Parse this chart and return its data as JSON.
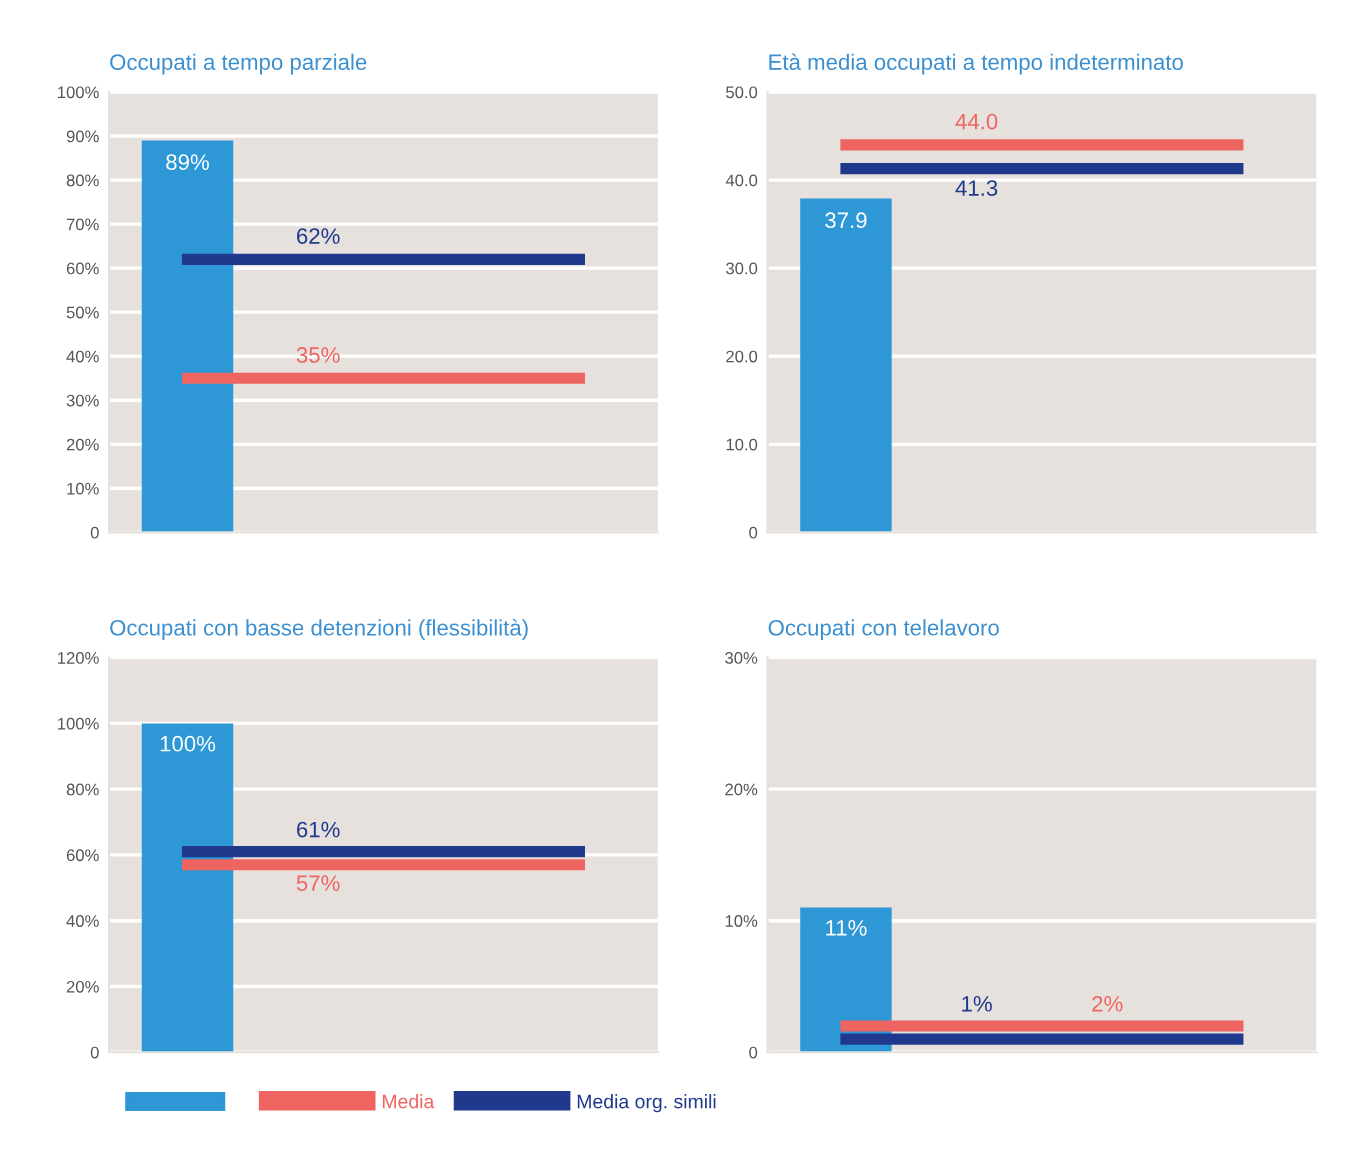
{
  "chart_data": [
    {
      "type": "bar",
      "title": "Occupati a tempo parziale",
      "categories": [
        null,
        null,
        null,
        null
      ],
      "ylim": [
        0,
        100
      ],
      "yticks": [
        0,
        {
          "value": 10,
          "label": "10%"
        },
        {
          "value": 20,
          "label": "20%"
        },
        {
          "value": 30,
          "label": "30%"
        },
        {
          "value": 40,
          "label": "40%"
        },
        {
          "value": 50,
          "label": "50%"
        },
        {
          "value": 60,
          "label": "60%"
        },
        {
          "value": 70,
          "label": "70%"
        },
        {
          "value": 80,
          "label": "80%"
        },
        {
          "value": 90,
          "label": "90%"
        },
        {
          "value": 100,
          "label": "100%"
        }
      ],
      "grid": "y",
      "series": [
        {
          "color": "#2e97d6",
          "values": [
            89,
            null,
            null,
            null
          ],
          "value_labels": [
            "89%",
            null,
            null,
            null
          ]
        },
        {
          "type": "line",
          "color": "#ee6460",
          "values": [
            35,
            35,
            35,
            35
          ],
          "value_labels": [
            null,
            "35%",
            null,
            null
          ]
        },
        {
          "type": "line",
          "color": "#1f3a8c",
          "values": [
            62,
            62,
            62,
            62
          ],
          "value_labels": [
            null,
            "62%",
            null,
            null
          ]
        }
      ]
    },
    {
      "type": "bar",
      "title": "Età media occupati a tempo indeterminato",
      "categories": [
        null,
        null,
        null,
        null
      ],
      "ylim": [
        0,
        50
      ],
      "yticks": [
        0,
        {
          "value": 10,
          "label": "10.0"
        },
        {
          "value": 20,
          "label": "20.0"
        },
        {
          "value": 30,
          "label": "30.0"
        },
        {
          "value": 40,
          "label": "40.0"
        },
        {
          "value": 50,
          "label": "50.0"
        }
      ],
      "grid": "y",
      "series": [
        {
          "color": "#2e97d6",
          "values": [
            37.9,
            null,
            null,
            null
          ],
          "value_labels": [
            "37.9",
            null,
            null,
            null
          ]
        },
        {
          "type": "line",
          "color": "#ee6460",
          "values": [
            44.0,
            44.0,
            44.0,
            44.0
          ],
          "value_labels": [
            null,
            "44.0",
            null,
            null
          ]
        },
        {
          "type": "line",
          "color": "#1f3a8c",
          "values": [
            41.3,
            41.3,
            41.3,
            41.3
          ],
          "value_labels": [
            null,
            "41.3",
            null,
            null
          ]
        }
      ]
    },
    {
      "type": "bar",
      "title": "Occupati con basse detenzioni (flessibilità)",
      "categories": [
        null,
        null,
        null,
        null
      ],
      "ylim": [
        0,
        120
      ],
      "yticks": [
        0,
        {
          "value": 20,
          "label": "20%"
        },
        {
          "value": 40,
          "label": "40%"
        },
        {
          "value": 60,
          "label": "60%"
        },
        {
          "value": 80,
          "label": "80%"
        },
        {
          "value": 100,
          "label": "100%"
        },
        {
          "value": 120,
          "label": "120%"
        }
      ],
      "grid": "y",
      "legend": "bottom",
      "series": [
        {
          "color": "#2e97d6",
          "values": [
            100,
            null,
            null,
            null
          ],
          "value_labels": [
            "100%",
            null,
            null,
            null
          ]
        },
        {
          "type": "line",
          "name": "Media",
          "color": "#ee6460",
          "values": [
            57,
            57,
            57,
            57
          ],
          "value_labels": [
            null,
            "57%",
            null,
            null
          ]
        },
        {
          "type": "line",
          "name": "Media org. simili",
          "color": "#1f3a8c",
          "values": [
            61,
            61,
            61,
            61
          ],
          "value_labels": [
            null,
            "61%",
            null,
            null
          ]
        }
      ]
    },
    {
      "type": "bar",
      "title": "Occupati con telelavoro",
      "categories": [
        null,
        null,
        null,
        null
      ],
      "ylim": [
        0,
        30
      ],
      "yticks": [
        0,
        {
          "value": 10,
          "label": "10%"
        },
        {
          "value": 20,
          "label": "20%"
        },
        {
          "value": 30,
          "label": "30%"
        }
      ],
      "grid": "y",
      "series": [
        {
          "color": "#2e97d6",
          "values": [
            11,
            null,
            null,
            null
          ],
          "value_labels": [
            "11%",
            null,
            null,
            null
          ]
        },
        {
          "type": "line",
          "color": "#ee6460",
          "values": [
            2,
            2,
            2,
            2
          ],
          "value_labels": [
            null,
            null,
            "2%",
            null
          ]
        },
        {
          "type": "line",
          "color": "#1f3a8c",
          "values": [
            1,
            1,
            1,
            1
          ],
          "value_labels": [
            null,
            "1%",
            null,
            null
          ]
        }
      ]
    }
  ]
}
